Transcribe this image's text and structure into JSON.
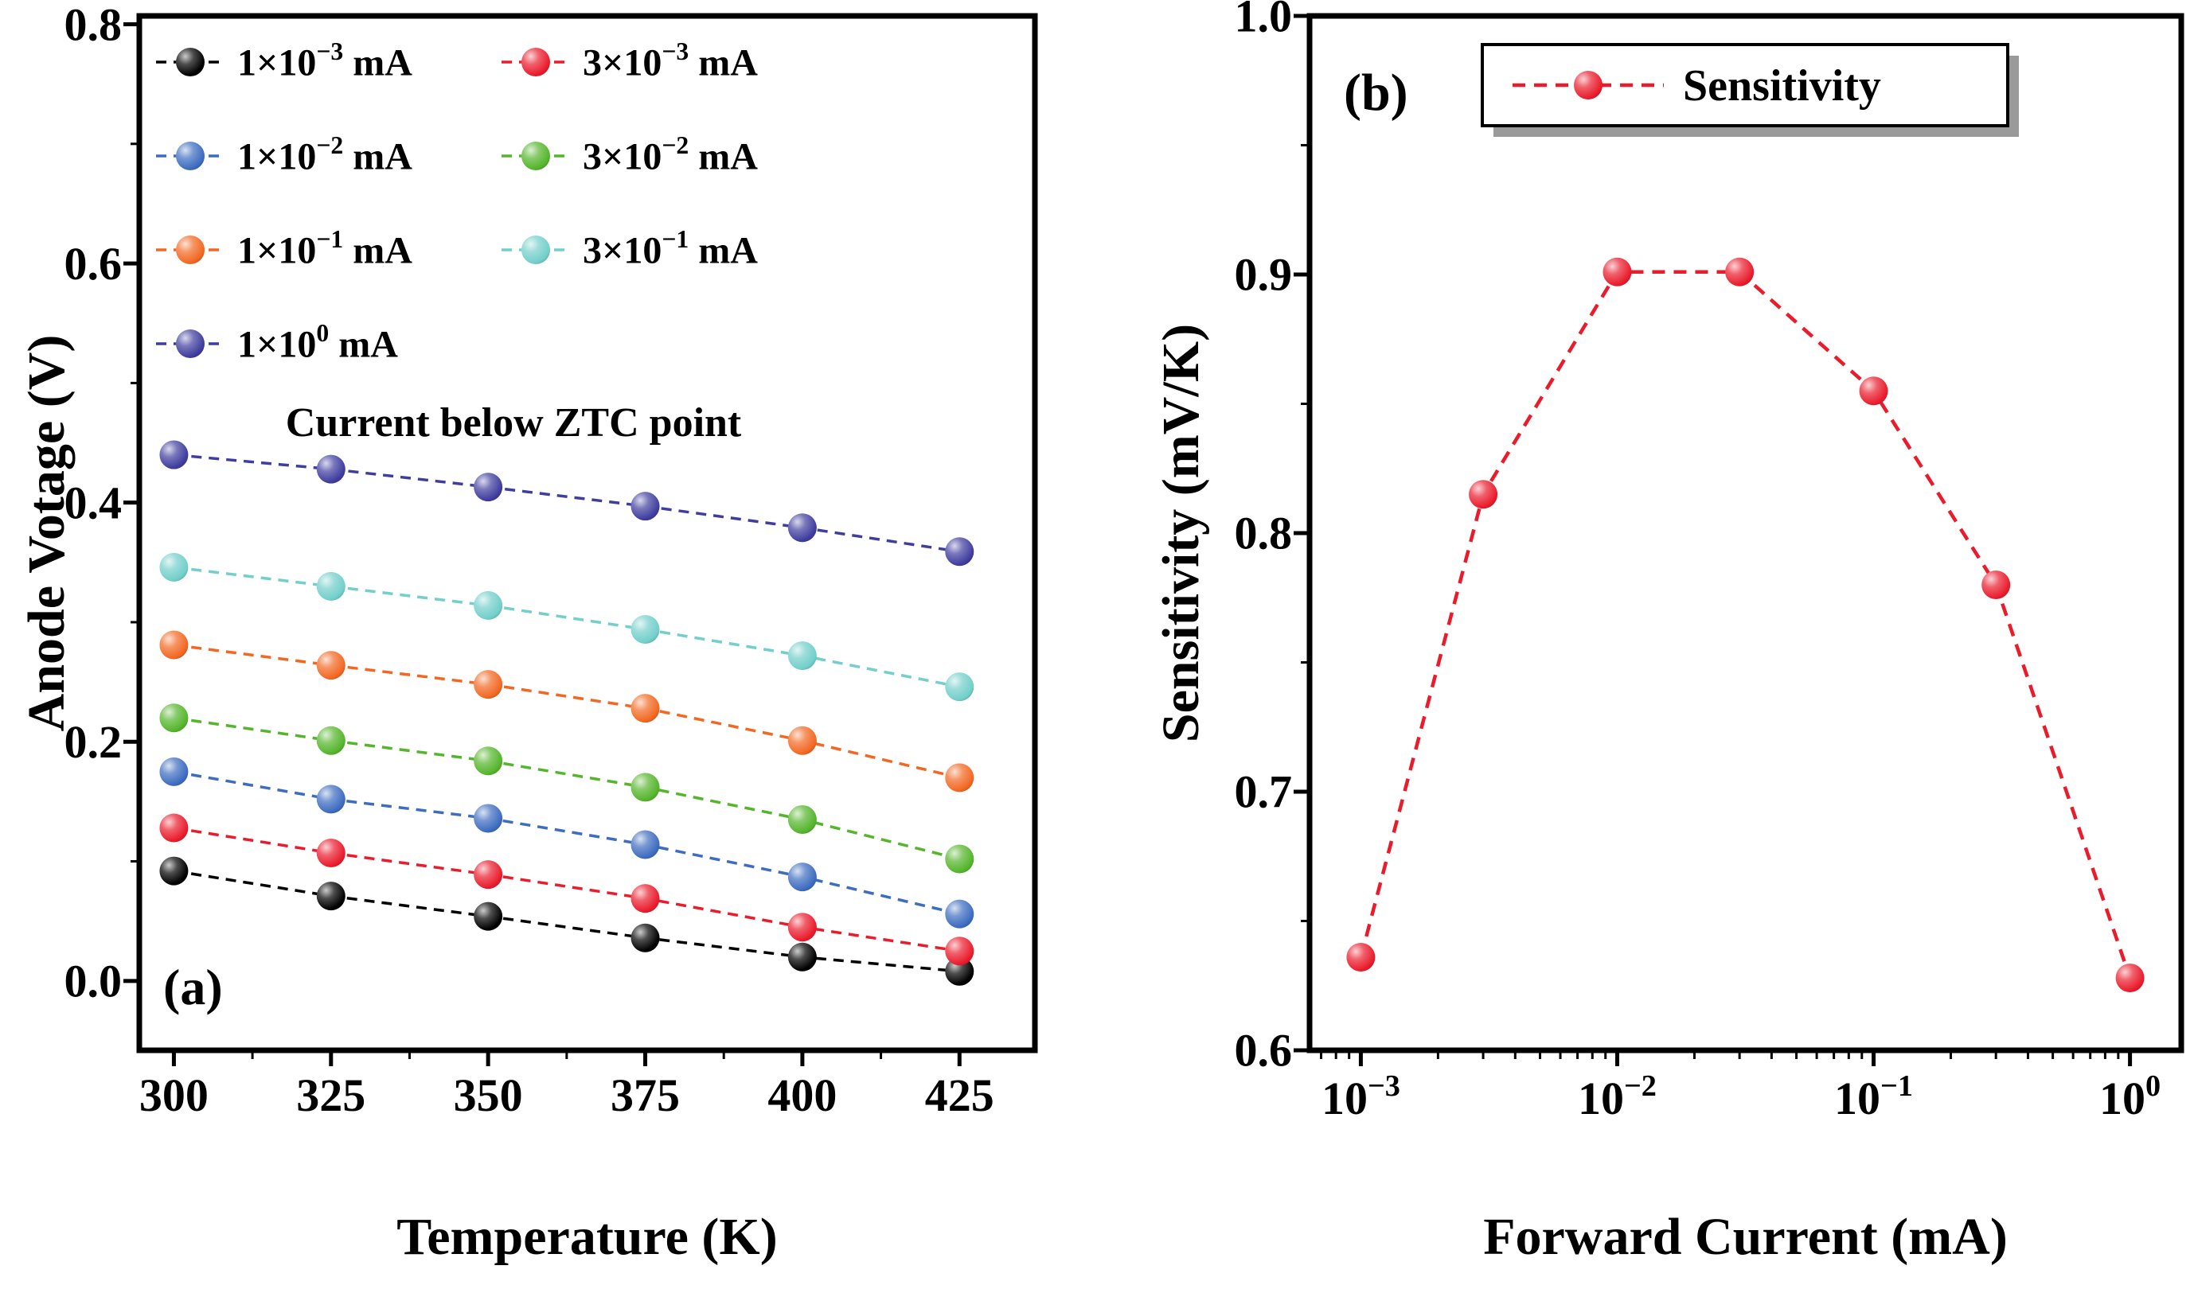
{
  "figure": {
    "description": "Two-panel scientific figure: (a) anode voltage vs temperature for several forward currents, (b) temperature sensitivity vs forward current"
  },
  "chart_data": [
    {
      "id": "a",
      "type": "scatter",
      "panel_label": "(a)",
      "annotation": "Current below ZTC point",
      "xlabel": "Temperature (K)",
      "ylabel": "Anode Votage (V)",
      "xscale": "linear",
      "xlim": [
        294.5,
        437
      ],
      "ylim": [
        -0.058,
        0.807
      ],
      "x": [
        300,
        325,
        350,
        375,
        400,
        425
      ],
      "xticks": [
        {
          "v": 300,
          "parts": [
            {
              "t": "300"
            }
          ]
        },
        {
          "v": 325,
          "parts": [
            {
              "t": "325"
            }
          ]
        },
        {
          "v": 350,
          "parts": [
            {
              "t": "350"
            }
          ]
        },
        {
          "v": 375,
          "parts": [
            {
              "t": "375"
            }
          ]
        },
        {
          "v": 400,
          "parts": [
            {
              "t": "400"
            }
          ]
        },
        {
          "v": 425,
          "parts": [
            {
              "t": "425"
            }
          ]
        }
      ],
      "xminor": [
        312.5,
        337.5,
        362.5,
        387.5,
        412.5
      ],
      "yticks": [
        {
          "v": 0.0,
          "parts": [
            {
              "t": "0.0"
            }
          ]
        },
        {
          "v": 0.2,
          "parts": [
            {
              "t": "0.2"
            }
          ]
        },
        {
          "v": 0.4,
          "parts": [
            {
              "t": "0.4"
            }
          ]
        },
        {
          "v": 0.6,
          "parts": [
            {
              "t": "0.6"
            }
          ]
        },
        {
          "v": 0.8,
          "parts": [
            {
              "t": "0.8"
            }
          ]
        }
      ],
      "yminor": [
        0.1,
        0.3,
        0.5,
        0.7
      ],
      "legend_position": "top-left-inside",
      "series": [
        {
          "id": "1e-3mA",
          "color": "#000000",
          "label_parts": [
            {
              "t": "1×10"
            },
            {
              "t": "−3",
              "sup": true
            },
            {
              "t": " mA"
            }
          ],
          "values": [
            0.092,
            0.071,
            0.054,
            0.036,
            0.02,
            0.008
          ]
        },
        {
          "id": "3e-3mA",
          "color": "#ea1c2c",
          "label_parts": [
            {
              "t": "3×10"
            },
            {
              "t": "−3",
              "sup": true
            },
            {
              "t": " mA"
            }
          ],
          "values": [
            0.128,
            0.107,
            0.089,
            0.069,
            0.045,
            0.025
          ]
        },
        {
          "id": "1e-2mA",
          "color": "#3d6cc0",
          "label_parts": [
            {
              "t": "1×10"
            },
            {
              "t": "−2",
              "sup": true
            },
            {
              "t": " mA"
            }
          ],
          "values": [
            0.175,
            0.152,
            0.136,
            0.114,
            0.087,
            0.056
          ]
        },
        {
          "id": "3e-2mA",
          "color": "#55b52c",
          "label_parts": [
            {
              "t": "3×10"
            },
            {
              "t": "−2",
              "sup": true
            },
            {
              "t": " mA"
            }
          ],
          "values": [
            0.22,
            0.201,
            0.184,
            0.162,
            0.135,
            0.102
          ]
        },
        {
          "id": "1e-1mA",
          "color": "#f26822",
          "label_parts": [
            {
              "t": "1×10"
            },
            {
              "t": "−1",
              "sup": true
            },
            {
              "t": " mA"
            }
          ],
          "values": [
            0.281,
            0.264,
            0.248,
            0.228,
            0.201,
            0.17
          ]
        },
        {
          "id": "3e-1mA",
          "color": "#72cfca",
          "label_parts": [
            {
              "t": "3×10"
            },
            {
              "t": "−1",
              "sup": true
            },
            {
              "t": " mA"
            }
          ],
          "values": [
            0.346,
            0.33,
            0.314,
            0.294,
            0.272,
            0.246
          ]
        },
        {
          "id": "1e0mA",
          "color": "#3f3d9e",
          "label_parts": [
            {
              "t": "1×10"
            },
            {
              "t": "0",
              "sup": true
            },
            {
              "t": " mA"
            }
          ],
          "values": [
            0.44,
            0.428,
            0.413,
            0.397,
            0.379,
            0.359
          ]
        }
      ]
    },
    {
      "id": "b",
      "type": "scatter",
      "panel_label": "(b)",
      "xlabel": "Forward Current (mA)",
      "ylabel": "Sensitivity (mV/K)",
      "xscale": "log",
      "xlim": [
        -3.2,
        0.2
      ],
      "ylim": [
        0.6,
        1.0
      ],
      "x": [
        0.001,
        0.003,
        0.01,
        0.03,
        0.1,
        0.3,
        1.0
      ],
      "xticks": [
        {
          "v": 0.001,
          "parts": [
            {
              "t": "10"
            },
            {
              "t": "−3",
              "sup": true
            }
          ]
        },
        {
          "v": 0.01,
          "parts": [
            {
              "t": "10"
            },
            {
              "t": "−2",
              "sup": true
            }
          ]
        },
        {
          "v": 0.1,
          "parts": [
            {
              "t": "10"
            },
            {
              "t": "−1",
              "sup": true
            }
          ]
        },
        {
          "v": 1.0,
          "parts": [
            {
              "t": "10"
            },
            {
              "t": "0",
              "sup": true
            }
          ]
        }
      ],
      "xminor": [
        0.0007,
        0.0008,
        0.0009,
        0.002,
        0.003,
        0.004,
        0.005,
        0.006,
        0.007,
        0.008,
        0.009,
        0.02,
        0.03,
        0.04,
        0.05,
        0.06,
        0.07,
        0.08,
        0.09,
        0.2,
        0.3,
        0.4,
        0.5,
        0.6,
        0.7,
        0.8,
        0.9
      ],
      "yticks": [
        {
          "v": 0.6,
          "parts": [
            {
              "t": "0.6"
            }
          ]
        },
        {
          "v": 0.7,
          "parts": [
            {
              "t": "0.7"
            }
          ]
        },
        {
          "v": 0.8,
          "parts": [
            {
              "t": "0.8"
            }
          ]
        },
        {
          "v": 0.9,
          "parts": [
            {
              "t": "0.9"
            }
          ]
        },
        {
          "v": 1.0,
          "parts": [
            {
              "t": "1.0"
            }
          ]
        }
      ],
      "yminor": [
        0.65,
        0.75,
        0.85,
        0.95
      ],
      "legend_position": "top-center-boxed",
      "series": [
        {
          "id": "sensitivity",
          "color": "#ea1c2c",
          "label_parts": [
            {
              "t": "Sensitivity"
            }
          ],
          "values": [
            0.636,
            0.815,
            0.901,
            0.901,
            0.855,
            0.78,
            0.628
          ]
        }
      ]
    }
  ]
}
